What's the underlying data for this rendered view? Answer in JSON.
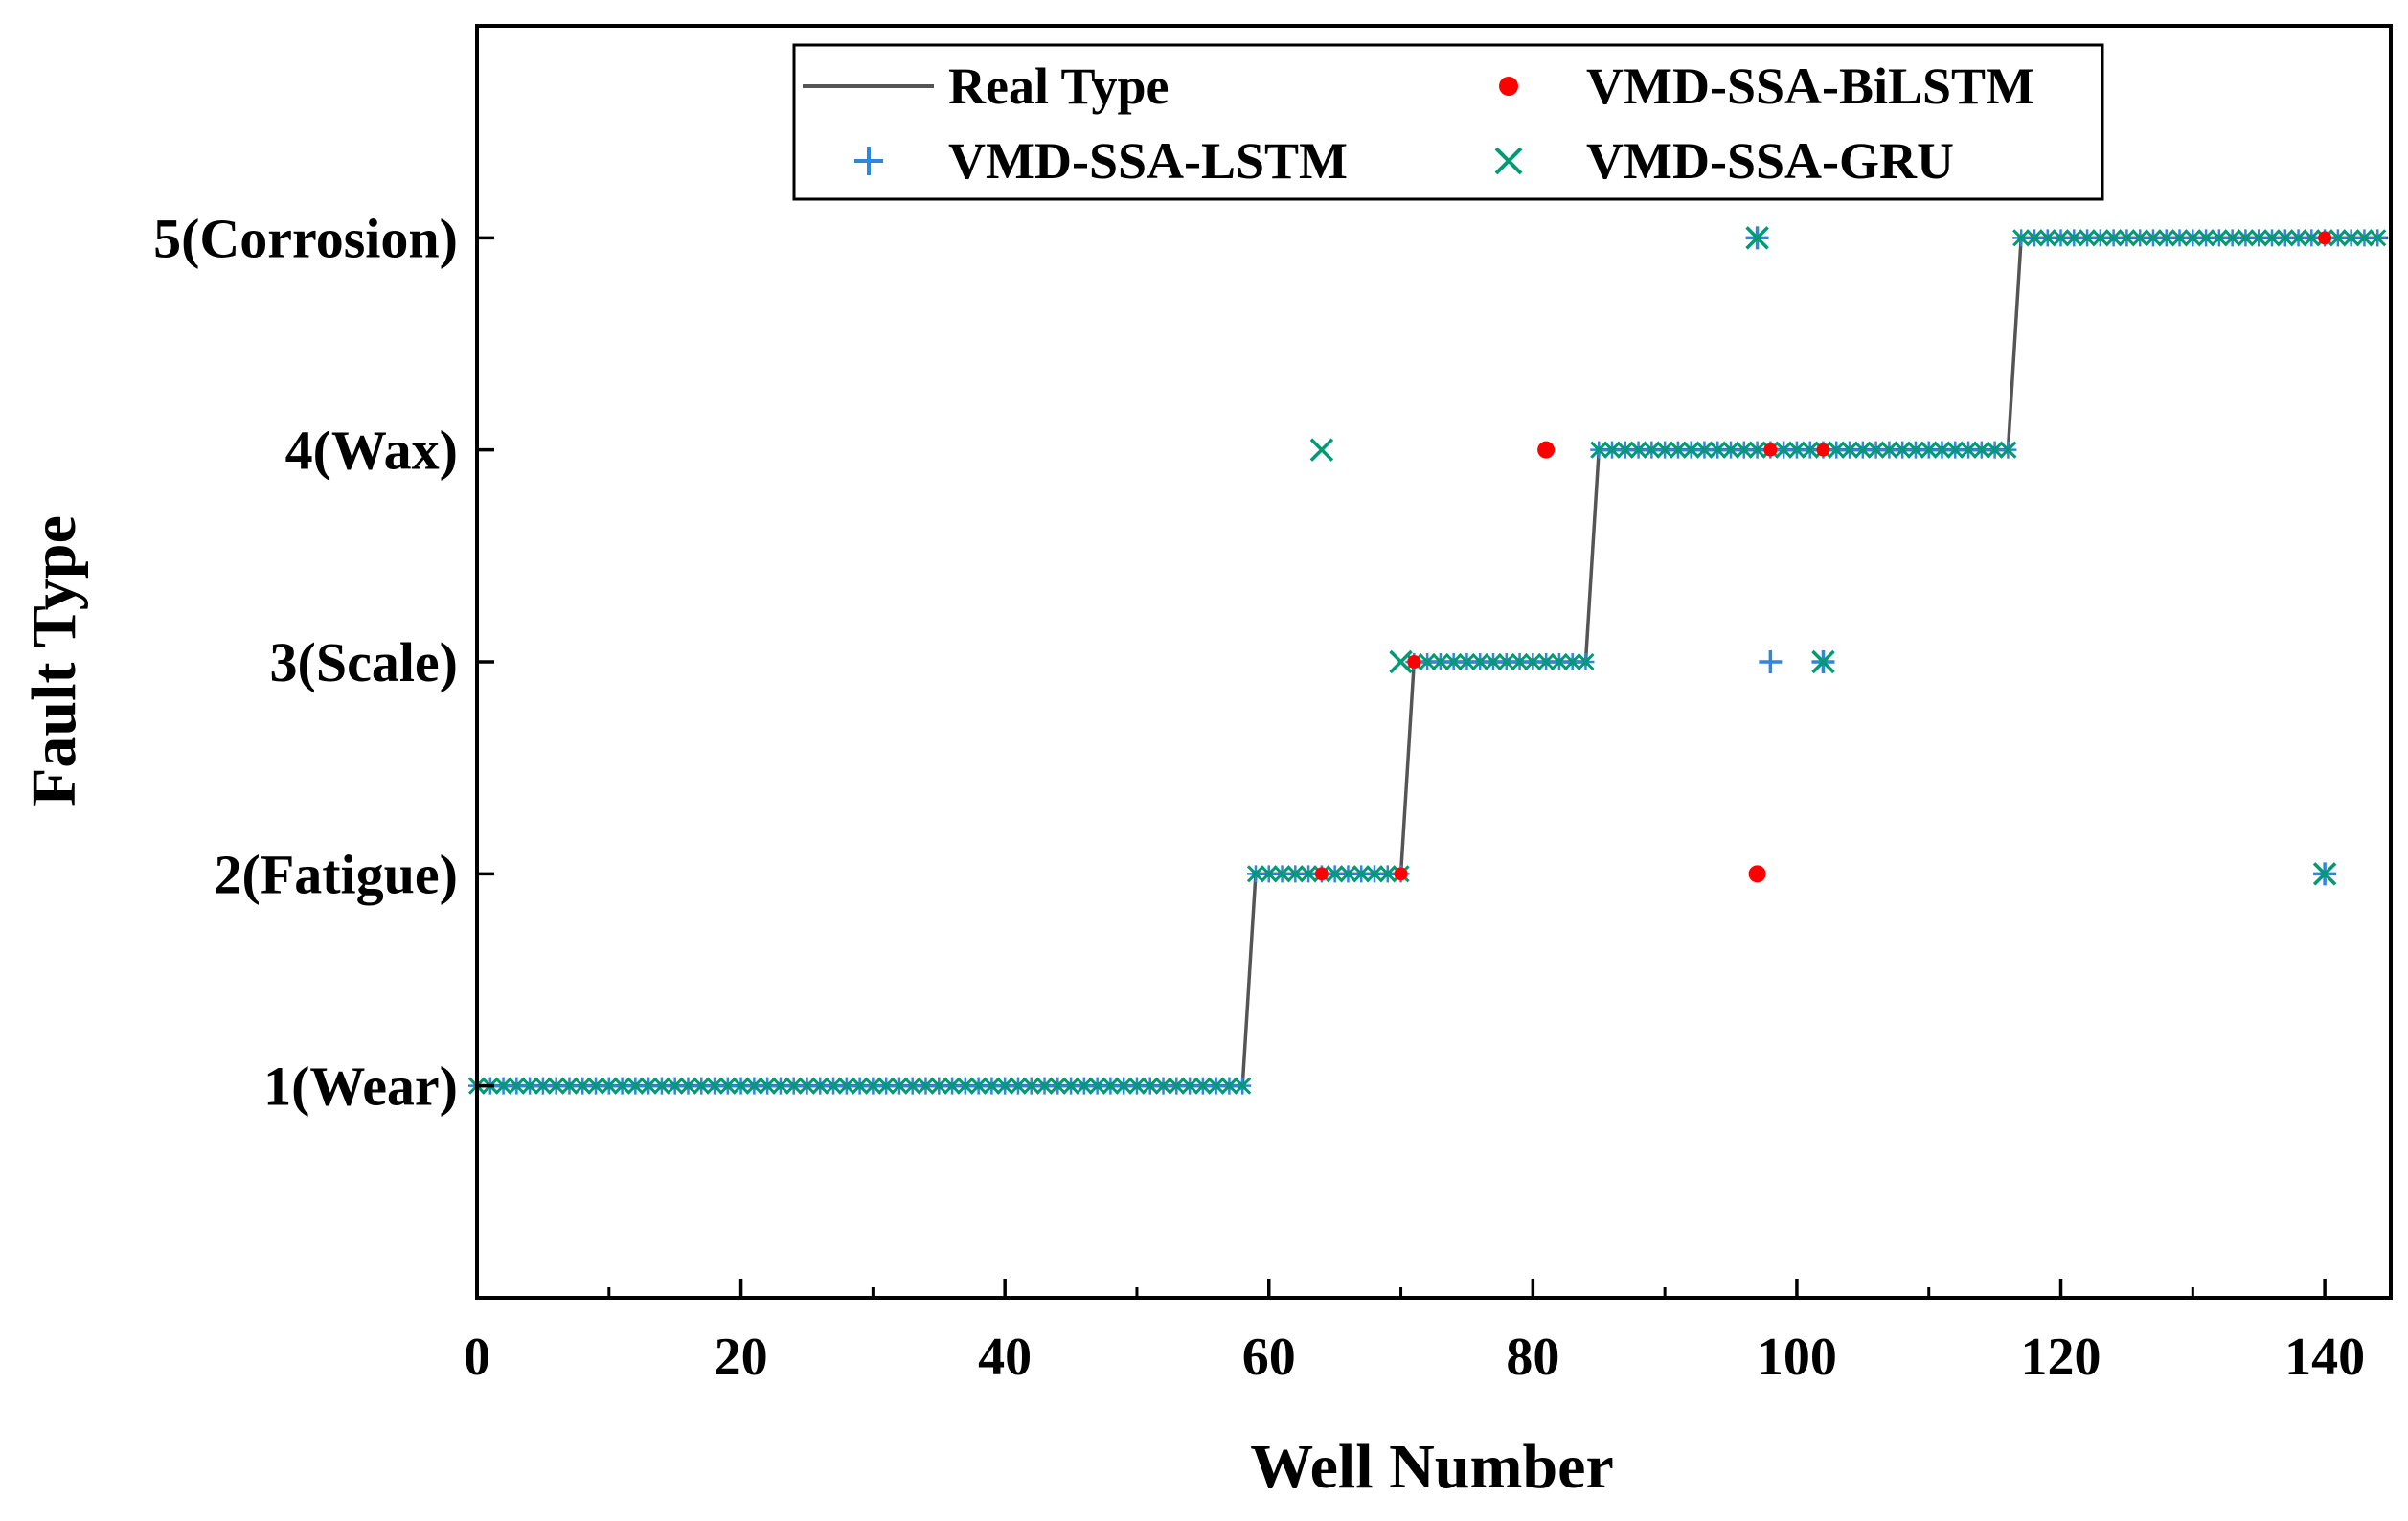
{
  "chart_data": {
    "type": "scatter",
    "title": "",
    "xlabel": "Well Number",
    "ylabel": "Fault Type",
    "xlim": [
      0,
      145
    ],
    "ylim": [
      0,
      6
    ],
    "x_ticks": [
      0,
      20,
      40,
      60,
      80,
      100,
      120,
      140
    ],
    "x_tick_labels": [
      "0",
      "20",
      "40",
      "60",
      "80",
      "100",
      "120",
      "140"
    ],
    "x_minor_ticks": [
      10,
      30,
      50,
      70,
      90,
      110,
      130
    ],
    "y_ticks": [
      1,
      2,
      3,
      4,
      5
    ],
    "y_tick_labels": [
      "1(Wear)",
      "2(Fatigue)",
      "3(Scale)",
      "4(Wax)",
      "5(Corrosion)"
    ],
    "legend": {
      "placement": "top-center",
      "entries": [
        "Real Type",
        "VMD-SSA-BiLSTM",
        "VMD-SSA-LSTM",
        "VMD-SSA-GRU"
      ]
    },
    "series": [
      {
        "name": "Real Type",
        "kind": "line",
        "color": "#555555",
        "segments": [
          {
            "x_start": 0,
            "x_end": 58,
            "value": 1
          },
          {
            "x_start": 59,
            "x_end": 70,
            "value": 2
          },
          {
            "x_start": 71,
            "x_end": 84,
            "value": 3
          },
          {
            "x_start": 85,
            "x_end": 116,
            "value": 4
          },
          {
            "x_start": 117,
            "x_end": 145,
            "value": 5
          }
        ]
      },
      {
        "name": "VMD-SSA-BiLSTM",
        "kind": "circle",
        "color": "#ff0000",
        "outliers": [
          [
            81,
            4
          ],
          [
            97,
            2
          ]
        ],
        "highlights": [
          [
            71,
            3
          ],
          [
            98,
            4
          ],
          [
            102,
            4
          ],
          [
            140,
            5
          ],
          [
            64,
            2
          ],
          [
            70,
            2
          ]
        ]
      },
      {
        "name": "VMD-SSA-LSTM",
        "kind": "plus",
        "color": "#2e86de",
        "outliers": [
          [
            97,
            5
          ],
          [
            98,
            3
          ],
          [
            102,
            3
          ],
          [
            140,
            2
          ]
        ]
      },
      {
        "name": "VMD-SSA-GRU",
        "kind": "x",
        "color": "#009b72",
        "outliers": [
          [
            64,
            4
          ],
          [
            70,
            3
          ],
          [
            97,
            5
          ],
          [
            102,
            3
          ],
          [
            140,
            2
          ]
        ]
      }
    ]
  }
}
